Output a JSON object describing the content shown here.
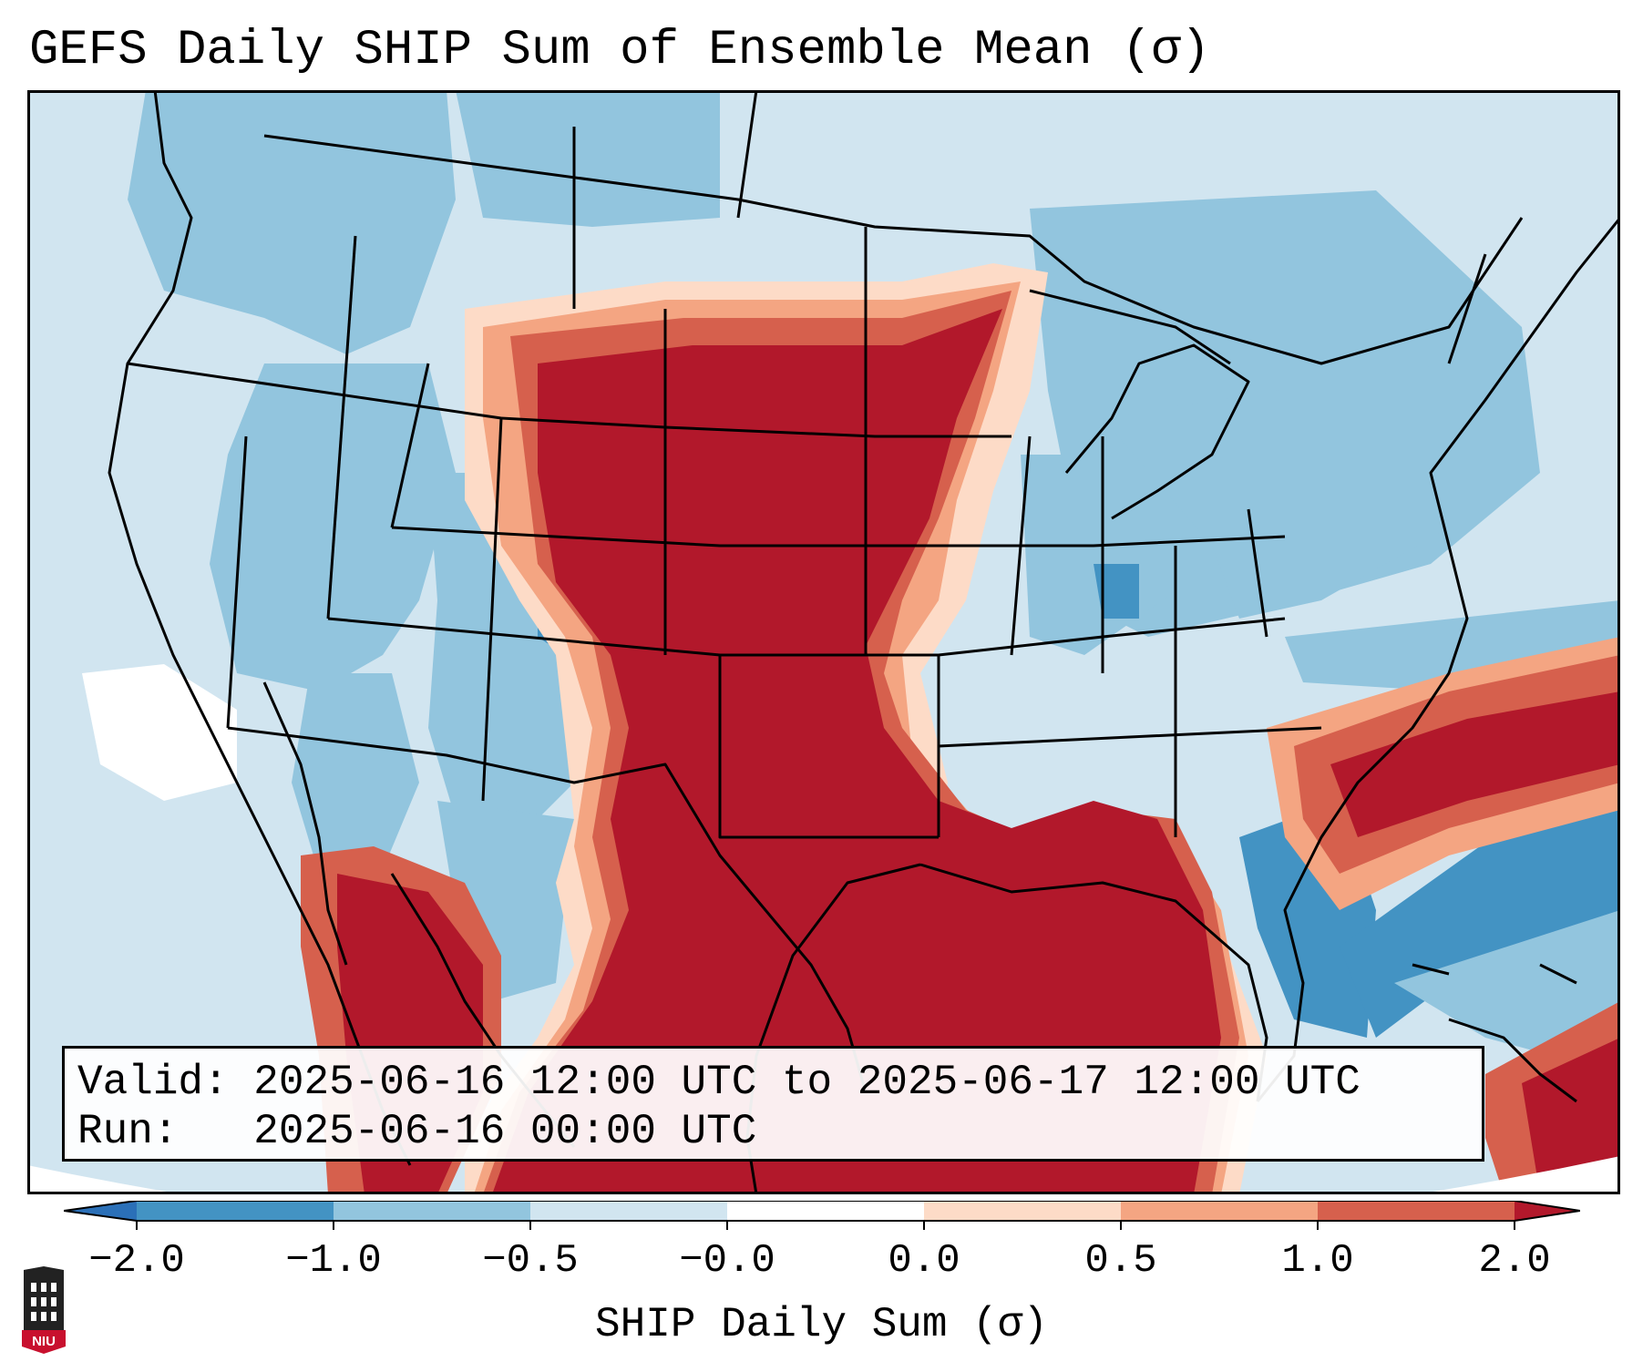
{
  "title": "GEFS Daily SHIP Sum of Ensemble Mean (σ)",
  "info": {
    "valid_label": "Valid:",
    "valid_value": "2025-06-16 12:00 UTC to 2025-06-17 12:00 UTC",
    "run_label": "Run:",
    "run_value": "2025-06-16 00:00 UTC"
  },
  "colorbar": {
    "label": "SHIP Daily Sum (σ)",
    "ticks": [
      "−2.0",
      "−1.0",
      "−0.5",
      "−0.0",
      "0.0",
      "0.5",
      "1.0",
      "2.0"
    ],
    "colors": {
      "below": "#2b70b8",
      "bin_m2_m1": "#4393c3",
      "bin_m1_m05": "#92c5de",
      "bin_m05_m0": "#d1e5f0",
      "bin_m0_0": "#ffffff",
      "bin_0_05": "#fddbc7",
      "bin_05_1": "#f4a582",
      "bin_1_2": "#d6604d",
      "above": "#b2182b"
    }
  },
  "logo": {
    "text": "NIU"
  },
  "chart_data": {
    "type": "heatmap",
    "title": "GEFS Daily SHIP Sum of Ensemble Mean (σ)",
    "colorbar_label": "SHIP Daily Sum (σ)",
    "levels": [
      -2.0,
      -1.0,
      -0.5,
      -0.0,
      0.0,
      0.5,
      1.0,
      2.0
    ],
    "extend": "both",
    "regions": [
      {
        "area": "Northern/Central Plains (WY, SD, NE, KS, MN, IA, WI)",
        "value": "> 2.0"
      },
      {
        "area": "Texas and Oklahoma",
        "value": "> 2.0"
      },
      {
        "area": "Gulf of Mexico",
        "value": "> 2.0"
      },
      {
        "area": "Western Atlantic off Carolinas",
        "value": "1.0 to > 2.0"
      },
      {
        "area": "Northwestern Mexico",
        "value": "1.0 to > 2.0"
      },
      {
        "area": "Southeast US (AL, GA, SC)",
        "value": "0.5 to 1.0"
      },
      {
        "area": "Western US and Great Basin",
        "value": "-1.0 to -0.0"
      },
      {
        "area": "Ohio Valley and Northeast",
        "value": "-1.0 to -0.0"
      },
      {
        "area": "Florida and Atlantic east of Florida",
        "value": "-2.0 to -1.0"
      },
      {
        "area": "Pacific off Baja California",
        "value": "-0.0 to 0.0"
      }
    ]
  }
}
